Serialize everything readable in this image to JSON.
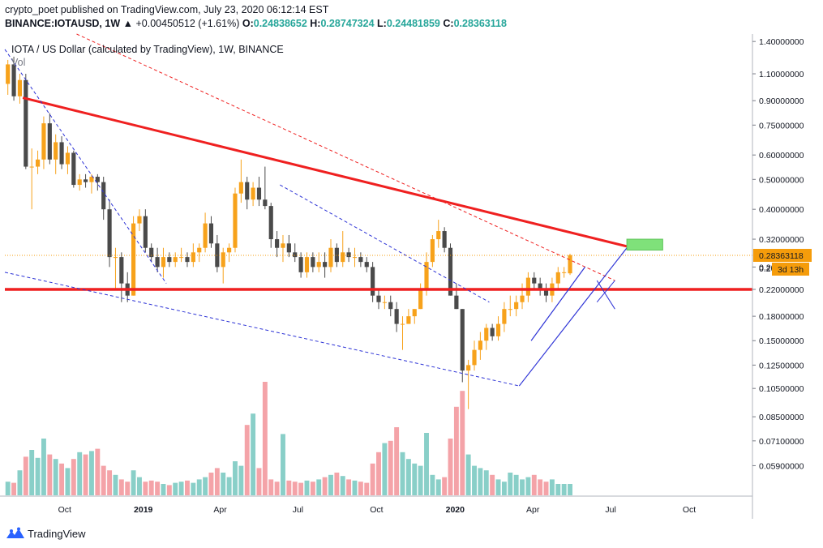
{
  "header": {
    "publisher_line": "crypto_poet published on TradingView.com, July 23, 2020 06:12:14 EST",
    "symbol": "BINANCE:IOTAUSD, 1W",
    "change": "+0.00450512 (+1.61%)",
    "open_label": "O:",
    "open": "0.24838652",
    "high_label": "H:",
    "high": "0.28747324",
    "low_label": "L:",
    "low": "0.24481859",
    "close_label": "C:",
    "close": "0.28363118"
  },
  "legend": {
    "title": "IOTA / US Dollar (calculated by TradingView), 1W, BINANCE",
    "volume": "Vol"
  },
  "footer": {
    "brand": "TradingView"
  },
  "colors": {
    "up": "#f7a21b",
    "down": "#4a4a4a",
    "vol_up": "#89cfc8",
    "vol_down": "#f4a3a8",
    "trend_red": "#ef2020",
    "blue": "#2d33d6",
    "price_label": "#f59c0b",
    "target_box": "#7fe17a"
  },
  "chart_data": {
    "type": "candlestick",
    "title": "IOTA / US Dollar (calculated by TradingView), 1W, BINANCE",
    "y_scale": "log",
    "ylim": [
      0.047,
      1.48
    ],
    "y_ticks": [
      "1.40000000",
      "1.10000000",
      "0.90000000",
      "0.75000000",
      "0.60000000",
      "0.50000000",
      "0.40000000",
      "0.32000000",
      "0.26000000",
      "0.22000000",
      "0.18000000",
      "0.15000000",
      "0.12500000",
      "0.10500000",
      "0.08500000",
      "0.07100000",
      "0.05900000"
    ],
    "x_range": [
      "2018-07-23",
      "2020-12-14"
    ],
    "x_ticks": [
      {
        "date": "2018-10-01",
        "label": "Oct"
      },
      {
        "date": "2019-01-01",
        "label": "2019"
      },
      {
        "date": "2019-04-01",
        "label": "Apr"
      },
      {
        "date": "2019-07-01",
        "label": "Jul"
      },
      {
        "date": "2019-10-01",
        "label": "Oct"
      },
      {
        "date": "2020-01-01",
        "label": "2020"
      },
      {
        "date": "2020-04-01",
        "label": "Apr"
      },
      {
        "date": "2020-07-01",
        "label": "Jul"
      },
      {
        "date": "2020-10-01",
        "label": "Oct"
      }
    ],
    "price_label": "0.28363118",
    "countdown_label": "3d 13h",
    "partial_tick_label": "0.26",
    "last_close": 0.28363118,
    "ohlc_weekly": [
      [
        1.02,
        1.22,
        0.94,
        1.18
      ],
      [
        1.18,
        1.25,
        0.9,
        0.93
      ],
      [
        0.93,
        1.1,
        0.88,
        1.05
      ],
      [
        1.05,
        1.1,
        0.54,
        0.55
      ],
      [
        0.55,
        0.63,
        0.4,
        0.55
      ],
      [
        0.55,
        0.62,
        0.52,
        0.58
      ],
      [
        0.58,
        0.8,
        0.54,
        0.76
      ],
      [
        0.76,
        0.82,
        0.56,
        0.58
      ],
      [
        0.58,
        0.7,
        0.52,
        0.66
      ],
      [
        0.66,
        0.69,
        0.54,
        0.56
      ],
      [
        0.56,
        0.64,
        0.52,
        0.61
      ],
      [
        0.61,
        0.62,
        0.47,
        0.48
      ],
      [
        0.48,
        0.52,
        0.46,
        0.5
      ],
      [
        0.5,
        0.52,
        0.47,
        0.49
      ],
      [
        0.49,
        0.52,
        0.45,
        0.51
      ],
      [
        0.51,
        0.52,
        0.46,
        0.49
      ],
      [
        0.49,
        0.51,
        0.37,
        0.4
      ],
      [
        0.4,
        0.43,
        0.26,
        0.28
      ],
      [
        0.28,
        0.3,
        0.22,
        0.28
      ],
      [
        0.28,
        0.29,
        0.2,
        0.23
      ],
      [
        0.23,
        0.25,
        0.2,
        0.21
      ],
      [
        0.21,
        0.38,
        0.21,
        0.36
      ],
      [
        0.36,
        0.4,
        0.34,
        0.38
      ],
      [
        0.38,
        0.4,
        0.29,
        0.3
      ],
      [
        0.3,
        0.31,
        0.27,
        0.28
      ],
      [
        0.28,
        0.3,
        0.25,
        0.26
      ],
      [
        0.26,
        0.3,
        0.24,
        0.28
      ],
      [
        0.28,
        0.29,
        0.26,
        0.27
      ],
      [
        0.27,
        0.29,
        0.26,
        0.28
      ],
      [
        0.28,
        0.3,
        0.27,
        0.28
      ],
      [
        0.28,
        0.29,
        0.26,
        0.27
      ],
      [
        0.27,
        0.31,
        0.26,
        0.29
      ],
      [
        0.29,
        0.31,
        0.27,
        0.3
      ],
      [
        0.3,
        0.39,
        0.29,
        0.36
      ],
      [
        0.36,
        0.38,
        0.3,
        0.31
      ],
      [
        0.31,
        0.33,
        0.25,
        0.26
      ],
      [
        0.26,
        0.3,
        0.23,
        0.29
      ],
      [
        0.29,
        0.31,
        0.27,
        0.3
      ],
      [
        0.3,
        0.47,
        0.29,
        0.45
      ],
      [
        0.45,
        0.58,
        0.42,
        0.49
      ],
      [
        0.49,
        0.51,
        0.4,
        0.43
      ],
      [
        0.43,
        0.49,
        0.41,
        0.47
      ],
      [
        0.47,
        0.51,
        0.41,
        0.43
      ],
      [
        0.43,
        0.55,
        0.4,
        0.41
      ],
      [
        0.41,
        0.42,
        0.3,
        0.32
      ],
      [
        0.32,
        0.34,
        0.28,
        0.3
      ],
      [
        0.3,
        0.33,
        0.27,
        0.31
      ],
      [
        0.31,
        0.33,
        0.28,
        0.29
      ],
      [
        0.29,
        0.31,
        0.27,
        0.28
      ],
      [
        0.28,
        0.29,
        0.24,
        0.25
      ],
      [
        0.25,
        0.29,
        0.24,
        0.28
      ],
      [
        0.28,
        0.29,
        0.25,
        0.26
      ],
      [
        0.26,
        0.29,
        0.25,
        0.27
      ],
      [
        0.27,
        0.29,
        0.24,
        0.26
      ],
      [
        0.26,
        0.32,
        0.25,
        0.3
      ],
      [
        0.3,
        0.31,
        0.26,
        0.27
      ],
      [
        0.27,
        0.34,
        0.26,
        0.29
      ],
      [
        0.29,
        0.3,
        0.27,
        0.28
      ],
      [
        0.28,
        0.3,
        0.26,
        0.28
      ],
      [
        0.28,
        0.29,
        0.26,
        0.27
      ],
      [
        0.27,
        0.28,
        0.25,
        0.26
      ],
      [
        0.26,
        0.27,
        0.2,
        0.21
      ],
      [
        0.21,
        0.22,
        0.19,
        0.2
      ],
      [
        0.2,
        0.21,
        0.19,
        0.2
      ],
      [
        0.2,
        0.21,
        0.18,
        0.19
      ],
      [
        0.19,
        0.2,
        0.16,
        0.17
      ],
      [
        0.17,
        0.18,
        0.14,
        0.17
      ],
      [
        0.17,
        0.19,
        0.17,
        0.18
      ],
      [
        0.18,
        0.19,
        0.17,
        0.19
      ],
      [
        0.19,
        0.23,
        0.19,
        0.22
      ],
      [
        0.22,
        0.29,
        0.21,
        0.27
      ],
      [
        0.27,
        0.33,
        0.26,
        0.32
      ],
      [
        0.32,
        0.37,
        0.3,
        0.34
      ],
      [
        0.34,
        0.35,
        0.29,
        0.3
      ],
      [
        0.3,
        0.31,
        0.21,
        0.21
      ],
      [
        0.21,
        0.23,
        0.19,
        0.19
      ],
      [
        0.19,
        0.19,
        0.11,
        0.12
      ],
      [
        0.12,
        0.13,
        0.09,
        0.125
      ],
      [
        0.125,
        0.15,
        0.12,
        0.14
      ],
      [
        0.14,
        0.16,
        0.13,
        0.15
      ],
      [
        0.15,
        0.17,
        0.14,
        0.165
      ],
      [
        0.165,
        0.17,
        0.15,
        0.155
      ],
      [
        0.155,
        0.18,
        0.15,
        0.17
      ],
      [
        0.17,
        0.2,
        0.16,
        0.19
      ],
      [
        0.19,
        0.21,
        0.18,
        0.19
      ],
      [
        0.19,
        0.21,
        0.18,
        0.2
      ],
      [
        0.2,
        0.23,
        0.19,
        0.21
      ],
      [
        0.21,
        0.25,
        0.2,
        0.24
      ],
      [
        0.24,
        0.25,
        0.22,
        0.23
      ],
      [
        0.23,
        0.24,
        0.21,
        0.22
      ],
      [
        0.22,
        0.23,
        0.2,
        0.21
      ],
      [
        0.21,
        0.24,
        0.2,
        0.23
      ],
      [
        0.23,
        0.26,
        0.22,
        0.25
      ],
      [
        0.25,
        0.26,
        0.24,
        0.25
      ],
      [
        0.248,
        0.287,
        0.245,
        0.284
      ]
    ],
    "volume_weekly": [
      12,
      11,
      22,
      34,
      40,
      33,
      50,
      36,
      32,
      28,
      24,
      32,
      38,
      36,
      39,
      41,
      26,
      22,
      18,
      14,
      12,
      22,
      16,
      12,
      13,
      12,
      10,
      9,
      11,
      12,
      13,
      11,
      14,
      16,
      20,
      24,
      20,
      16,
      30,
      26,
      20,
      18,
      24,
      16,
      14,
      12,
      16,
      13,
      12,
      11,
      13,
      12,
      14,
      16,
      18,
      20,
      17,
      14,
      13,
      12,
      11,
      28,
      38,
      46,
      48,
      42,
      38,
      32,
      28,
      26,
      22,
      18,
      14,
      16,
      50,
      78,
      60,
      36,
      26,
      24,
      22,
      18,
      14,
      12,
      20,
      18,
      14,
      16,
      18,
      14,
      12,
      14,
      10,
      10,
      10
    ],
    "volume_spikes": {
      "40": 62,
      "41": 72,
      "43": 100,
      "46": 54,
      "65": 60,
      "70": 55,
      "76": 92
    },
    "trendlines": {
      "upper_red": [
        [
          "2018-08-13",
          0.92
        ],
        [
          "2020-07-27",
          0.3
        ]
      ],
      "support_red": [
        [
          "2018-07-23",
          0.22
        ],
        [
          "2020-12-14",
          0.22
        ]
      ],
      "red_dashed": [
        [
          "2018-10-15",
          1.48
        ],
        [
          "2020-07-06",
          0.235
        ]
      ],
      "blue_upper": [
        [
          "2018-07-23",
          1.32
        ],
        [
          "2019-01-28",
          0.23
        ]
      ],
      "blue_mid": [
        [
          "2019-06-10",
          0.48
        ],
        [
          "2020-02-10",
          0.2
        ]
      ],
      "blue_lower": [
        [
          "2018-07-23",
          0.25
        ],
        [
          "2020-03-16",
          0.107
        ]
      ],
      "channel_lower": [
        [
          "2020-03-16",
          0.107
        ],
        [
          "2020-07-20",
          0.3
        ]
      ],
      "channel_upper": [
        [
          "2020-03-30",
          0.15
        ],
        [
          "2020-06-01",
          0.26
        ]
      ],
      "wedge_a": [
        [
          "2020-06-15",
          0.235
        ],
        [
          "2020-07-06",
          0.19
        ]
      ],
      "wedge_b": [
        [
          "2020-06-15",
          0.2
        ],
        [
          "2020-07-06",
          0.235
        ]
      ]
    },
    "target_zone": {
      "from": "2020-07-20",
      "to": "2020-08-31",
      "low": 0.295,
      "high": 0.32
    }
  }
}
